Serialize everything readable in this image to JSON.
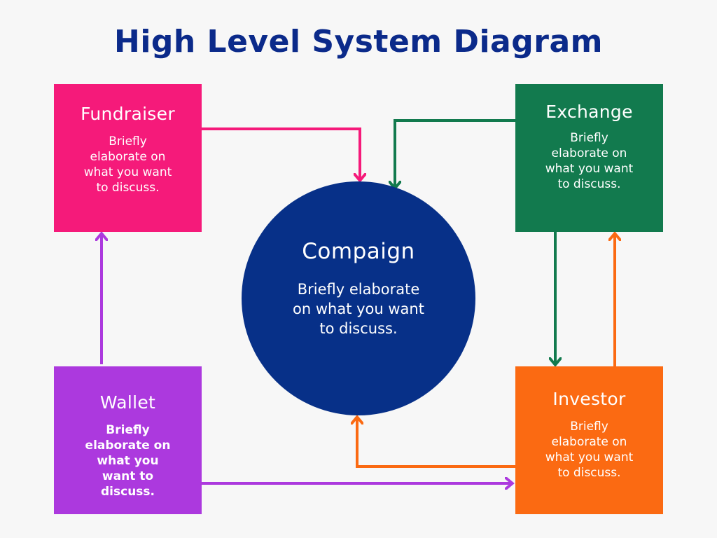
{
  "title": "High Level System Diagram",
  "center": {
    "title": "Compaign",
    "description": "Briefly elaborate on what you want to discuss."
  },
  "nodes": {
    "fundraiser": {
      "title": "Fundraiser",
      "description": "Briefly elaborate on what you want to discuss.",
      "color": "#f51a7a"
    },
    "exchange": {
      "title": "Exchange",
      "description": "Briefly elaborate on what you want to discuss.",
      "color": "#127a4e"
    },
    "wallet": {
      "title": "Wallet",
      "description": "Briefly elaborate on what you want to discuss.",
      "color": "#ac39de"
    },
    "investor": {
      "title": "Investor",
      "description": "Briefly elaborate on what you want to discuss.",
      "color": "#fb6a12"
    }
  },
  "center_color": "#073088",
  "title_color": "#0b2a8a",
  "connections": [
    {
      "from": "Fundraiser",
      "to": "Compaign",
      "color": "#f51a7a"
    },
    {
      "from": "Exchange",
      "to": "Compaign",
      "color": "#127a4e"
    },
    {
      "from": "Exchange",
      "to": "Investor",
      "color": "#127a4e"
    },
    {
      "from": "Investor",
      "to": "Exchange",
      "color": "#fb6a12"
    },
    {
      "from": "Investor",
      "to": "Compaign",
      "color": "#fb6a12"
    },
    {
      "from": "Wallet",
      "to": "Investor",
      "color": "#ac39de"
    },
    {
      "from": "Wallet",
      "to": "Fundraiser",
      "color": "#ac39de"
    }
  ]
}
